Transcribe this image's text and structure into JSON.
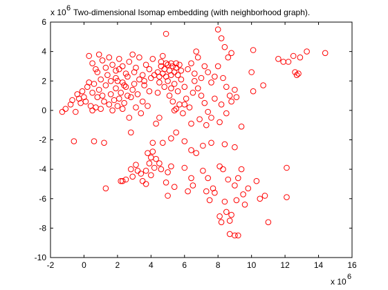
{
  "chart_data": {
    "type": "scatter",
    "title": "Two-dimensional Isomap embedding (with neighborhood graph).",
    "xlabel": "",
    "ylabel": "",
    "x_multiplier_label": "x 10",
    "x_multiplier_exp": "6",
    "y_multiplier_label": "x 10",
    "y_multiplier_exp": "6",
    "xlim": [
      -2,
      16
    ],
    "ylim": [
      -10,
      6
    ],
    "xticks": [
      "-2",
      "0",
      "2",
      "4",
      "6",
      "8",
      "10",
      "12",
      "14",
      "16"
    ],
    "yticks": [
      "6",
      "4",
      "2",
      "0",
      "-2",
      "-4",
      "-6",
      "-8",
      "-10"
    ],
    "xtick_values": [
      -2,
      0,
      2,
      4,
      6,
      8,
      10,
      12,
      14,
      16
    ],
    "ytick_values": [
      6,
      4,
      2,
      0,
      -2,
      -4,
      -6,
      -8,
      -10
    ],
    "grid": false,
    "marker": "circle-open",
    "marker_color": "#ff0000",
    "axis_color": "#000000",
    "points": [
      [
        -1.3,
        -0.1
      ],
      [
        -1.1,
        0.1
      ],
      [
        -0.8,
        0.4
      ],
      [
        -0.7,
        0.7
      ],
      [
        -0.5,
        -0.1
      ],
      [
        -0.4,
        1.1
      ],
      [
        -0.3,
        0.8
      ],
      [
        -0.2,
        0.5
      ],
      [
        -0.1,
        1.3
      ],
      [
        0.0,
        0.9
      ],
      [
        0.1,
        0.6
      ],
      [
        0.2,
        1.6
      ],
      [
        0.3,
        1.9
      ],
      [
        0.4,
        0.3
      ],
      [
        0.5,
        0.0
      ],
      [
        0.5,
        1.2
      ],
      [
        0.6,
        1.8
      ],
      [
        0.7,
        0.2
      ],
      [
        0.8,
        0.9
      ],
      [
        0.9,
        1.4
      ],
      [
        1.0,
        0.1
      ],
      [
        1.0,
        2.1
      ],
      [
        1.1,
        1.0
      ],
      [
        1.2,
        0.6
      ],
      [
        1.3,
        1.7
      ],
      [
        1.4,
        2.4
      ],
      [
        1.5,
        0.4
      ],
      [
        1.6,
        1.1
      ],
      [
        1.7,
        0.0
      ],
      [
        1.8,
        0.7
      ],
      [
        1.9,
        1.5
      ],
      [
        2.0,
        0.3
      ],
      [
        2.0,
        2.0
      ],
      [
        2.1,
        0.8
      ],
      [
        2.2,
        1.2
      ],
      [
        2.3,
        0.1
      ],
      [
        2.3,
        1.9
      ],
      [
        2.4,
        0.5
      ],
      [
        2.5,
        1.6
      ],
      [
        2.6,
        2.3
      ],
      [
        2.7,
        -0.5
      ],
      [
        2.8,
        0.9
      ],
      [
        2.9,
        1.4
      ],
      [
        3.0,
        2.6
      ],
      [
        3.1,
        0.2
      ],
      [
        3.2,
        1.1
      ],
      [
        3.3,
        2.1
      ],
      [
        3.4,
        -0.2
      ],
      [
        3.5,
        0.6
      ],
      [
        3.6,
        1.7
      ],
      [
        0.3,
        3.7
      ],
      [
        0.5,
        3.2
      ],
      [
        0.7,
        2.8
      ],
      [
        0.9,
        3.8
      ],
      [
        1.1,
        3.4
      ],
      [
        1.3,
        2.9
      ],
      [
        1.5,
        3.6
      ],
      [
        1.7,
        3.1
      ],
      [
        1.9,
        2.7
      ],
      [
        2.1,
        3.5
      ],
      [
        2.3,
        3.0
      ],
      [
        2.5,
        2.5
      ],
      [
        2.7,
        3.3
      ],
      [
        2.9,
        3.8
      ],
      [
        3.1,
        2.9
      ],
      [
        3.3,
        3.6
      ],
      [
        3.5,
        2.4
      ],
      [
        3.7,
        3.1
      ],
      [
        3.9,
        2.8
      ],
      [
        4.1,
        3.5
      ],
      [
        4.2,
        2.4
      ],
      [
        4.4,
        2.6
      ],
      [
        4.5,
        2.3
      ],
      [
        4.6,
        3.0
      ],
      [
        4.7,
        2.5
      ],
      [
        4.8,
        2.8
      ],
      [
        4.9,
        2.3
      ],
      [
        5.0,
        3.1
      ],
      [
        5.1,
        2.7
      ],
      [
        5.2,
        2.4
      ],
      [
        5.3,
        3.0
      ],
      [
        5.4,
        2.6
      ],
      [
        5.5,
        2.9
      ],
      [
        5.6,
        2.4
      ],
      [
        5.7,
        3.1
      ],
      [
        5.8,
        2.7
      ],
      [
        4.6,
        3.3
      ],
      [
        4.9,
        3.2
      ],
      [
        5.2,
        3.2
      ],
      [
        5.5,
        3.2
      ],
      [
        4.5,
        1.9
      ],
      [
        4.8,
        1.6
      ],
      [
        5.0,
        2.0
      ],
      [
        5.2,
        1.5
      ],
      [
        5.4,
        1.8
      ],
      [
        5.6,
        1.3
      ],
      [
        5.8,
        2.1
      ],
      [
        6.0,
        1.6
      ],
      [
        4.9,
        5.2
      ],
      [
        4.7,
        3.7
      ],
      [
        5.1,
        1.0
      ],
      [
        5.3,
        0.6
      ],
      [
        5.5,
        0.1
      ],
      [
        5.7,
        0.4
      ],
      [
        5.9,
        -0.2
      ],
      [
        6.1,
        0.8
      ],
      [
        6.3,
        0.2
      ],
      [
        6.5,
        1.2
      ],
      [
        4.3,
        -0.9
      ],
      [
        4.5,
        -0.5
      ],
      [
        6.2,
        2.8
      ],
      [
        6.4,
        3.2
      ],
      [
        6.6,
        2.5
      ],
      [
        6.8,
        3.6
      ],
      [
        7.0,
        2.2
      ],
      [
        7.2,
        3.0
      ],
      [
        7.4,
        2.6
      ],
      [
        7.6,
        1.9
      ],
      [
        7.8,
        2.3
      ],
      [
        6.7,
        4.0
      ],
      [
        6.6,
        2.0
      ],
      [
        6.8,
        1.5
      ],
      [
        7.0,
        1.0
      ],
      [
        7.2,
        0.5
      ],
      [
        7.4,
        -0.1
      ],
      [
        7.6,
        -0.5
      ],
      [
        7.8,
        0.8
      ],
      [
        6.4,
        -0.9
      ],
      [
        6.9,
        -0.6
      ],
      [
        7.3,
        -1.0
      ],
      [
        8.0,
        5.5
      ],
      [
        8.2,
        4.9
      ],
      [
        8.4,
        4.3
      ],
      [
        8.6,
        3.6
      ],
      [
        8.8,
        3.9
      ],
      [
        8.0,
        3.0
      ],
      [
        8.3,
        2.2
      ],
      [
        8.5,
        1.6
      ],
      [
        8.7,
        1.0
      ],
      [
        9.0,
        1.4
      ],
      [
        8.2,
        0.4
      ],
      [
        8.5,
        -0.2
      ],
      [
        8.8,
        0.6
      ],
      [
        9.1,
        0.9
      ],
      [
        9.4,
        -1.1
      ],
      [
        8.1,
        -0.8
      ],
      [
        10.1,
        4.1
      ],
      [
        10.0,
        2.6
      ],
      [
        10.7,
        1.7
      ],
      [
        10.1,
        1.3
      ],
      [
        11.6,
        3.5
      ],
      [
        11.9,
        3.3
      ],
      [
        12.2,
        3.3
      ],
      [
        12.5,
        3.7
      ],
      [
        12.7,
        2.4
      ],
      [
        12.9,
        3.6
      ],
      [
        13.3,
        4.0
      ],
      [
        14.4,
        3.9
      ],
      [
        12.8,
        2.5
      ],
      [
        12.6,
        2.6
      ],
      [
        6.4,
        -2.7
      ],
      [
        6.0,
        -2.1
      ],
      [
        5.5,
        -1.5
      ],
      [
        5.2,
        -1.9
      ],
      [
        6.7,
        -2.9
      ],
      [
        7.1,
        -2.4
      ],
      [
        7.6,
        -2.2
      ],
      [
        8.4,
        -2.3
      ],
      [
        9.0,
        -2.5
      ],
      [
        8.1,
        -3.8
      ],
      [
        3.8,
        -2.9
      ],
      [
        4.0,
        -3.2
      ],
      [
        4.1,
        -2.8
      ],
      [
        3.9,
        -3.6
      ],
      [
        4.2,
        -3.9
      ],
      [
        4.3,
        -3.3
      ],
      [
        3.7,
        -4.1
      ],
      [
        4.5,
        -3.6
      ],
      [
        4.6,
        -4.0
      ],
      [
        4.0,
        -4.4
      ],
      [
        3.1,
        -3.7
      ],
      [
        3.2,
        -4.1
      ],
      [
        2.8,
        -4.0
      ],
      [
        2.9,
        -4.5
      ],
      [
        3.4,
        -4.3
      ],
      [
        2.5,
        -4.7
      ],
      [
        2.2,
        -4.8
      ],
      [
        3.5,
        -4.8
      ],
      [
        3.7,
        -5.0
      ],
      [
        4.9,
        -4.9
      ],
      [
        4.1,
        -2.2
      ],
      [
        4.7,
        -2.2
      ],
      [
        5.0,
        -4.2
      ],
      [
        5.2,
        -3.8
      ],
      [
        6.0,
        -3.9
      ],
      [
        6.4,
        -4.6
      ],
      [
        6.5,
        -5.1
      ],
      [
        7.1,
        -4.1
      ],
      [
        7.4,
        -4.6
      ],
      [
        7.3,
        -5.5
      ],
      [
        7.5,
        -6.1
      ],
      [
        7.8,
        -5.6
      ],
      [
        8.1,
        -7.2
      ],
      [
        8.2,
        -7.6
      ],
      [
        8.5,
        -6.9
      ],
      [
        8.4,
        -6.2
      ],
      [
        8.7,
        -7.5
      ],
      [
        8.7,
        -8.4
      ],
      [
        9.0,
        -8.5
      ],
      [
        9.2,
        -8.5
      ],
      [
        8.6,
        -4.7
      ],
      [
        9.0,
        -5.1
      ],
      [
        9.2,
        -4.6
      ],
      [
        9.4,
        -4.0
      ],
      [
        9.5,
        -5.7
      ],
      [
        9.6,
        -6.4
      ],
      [
        9.1,
        -6.1
      ],
      [
        9.8,
        -5.3
      ],
      [
        10.3,
        -4.8
      ],
      [
        10.5,
        -6.0
      ],
      [
        10.8,
        -5.8
      ],
      [
        11.0,
        -7.6
      ],
      [
        12.1,
        -3.9
      ],
      [
        12.1,
        -5.9
      ],
      [
        8.8,
        -7.1
      ],
      [
        8.3,
        -4.0
      ],
      [
        7.7,
        -5.3
      ],
      [
        6.2,
        -5.5
      ],
      [
        5.4,
        -5.2
      ],
      [
        5.0,
        -5.8
      ],
      [
        -0.6,
        -2.1
      ],
      [
        0.6,
        -2.1
      ],
      [
        1.2,
        -2.2
      ],
      [
        1.3,
        -5.3
      ],
      [
        2.8,
        -1.5
      ],
      [
        2.3,
        -4.8
      ],
      [
        1.9,
        2.2
      ],
      [
        2.1,
        2.8
      ],
      [
        1.6,
        2.0
      ],
      [
        0.8,
        2.6
      ],
      [
        2.6,
        1.0
      ],
      [
        2.4,
        1.7
      ],
      [
        3.8,
        0.3
      ],
      [
        3.9,
        1.3
      ],
      [
        4.0,
        2.2
      ],
      [
        3.6,
        2.0
      ],
      [
        3.0,
        1.8
      ],
      [
        4.4,
        1.2
      ],
      [
        5.4,
        0.0
      ],
      [
        6.0,
        0.4
      ]
    ]
  }
}
